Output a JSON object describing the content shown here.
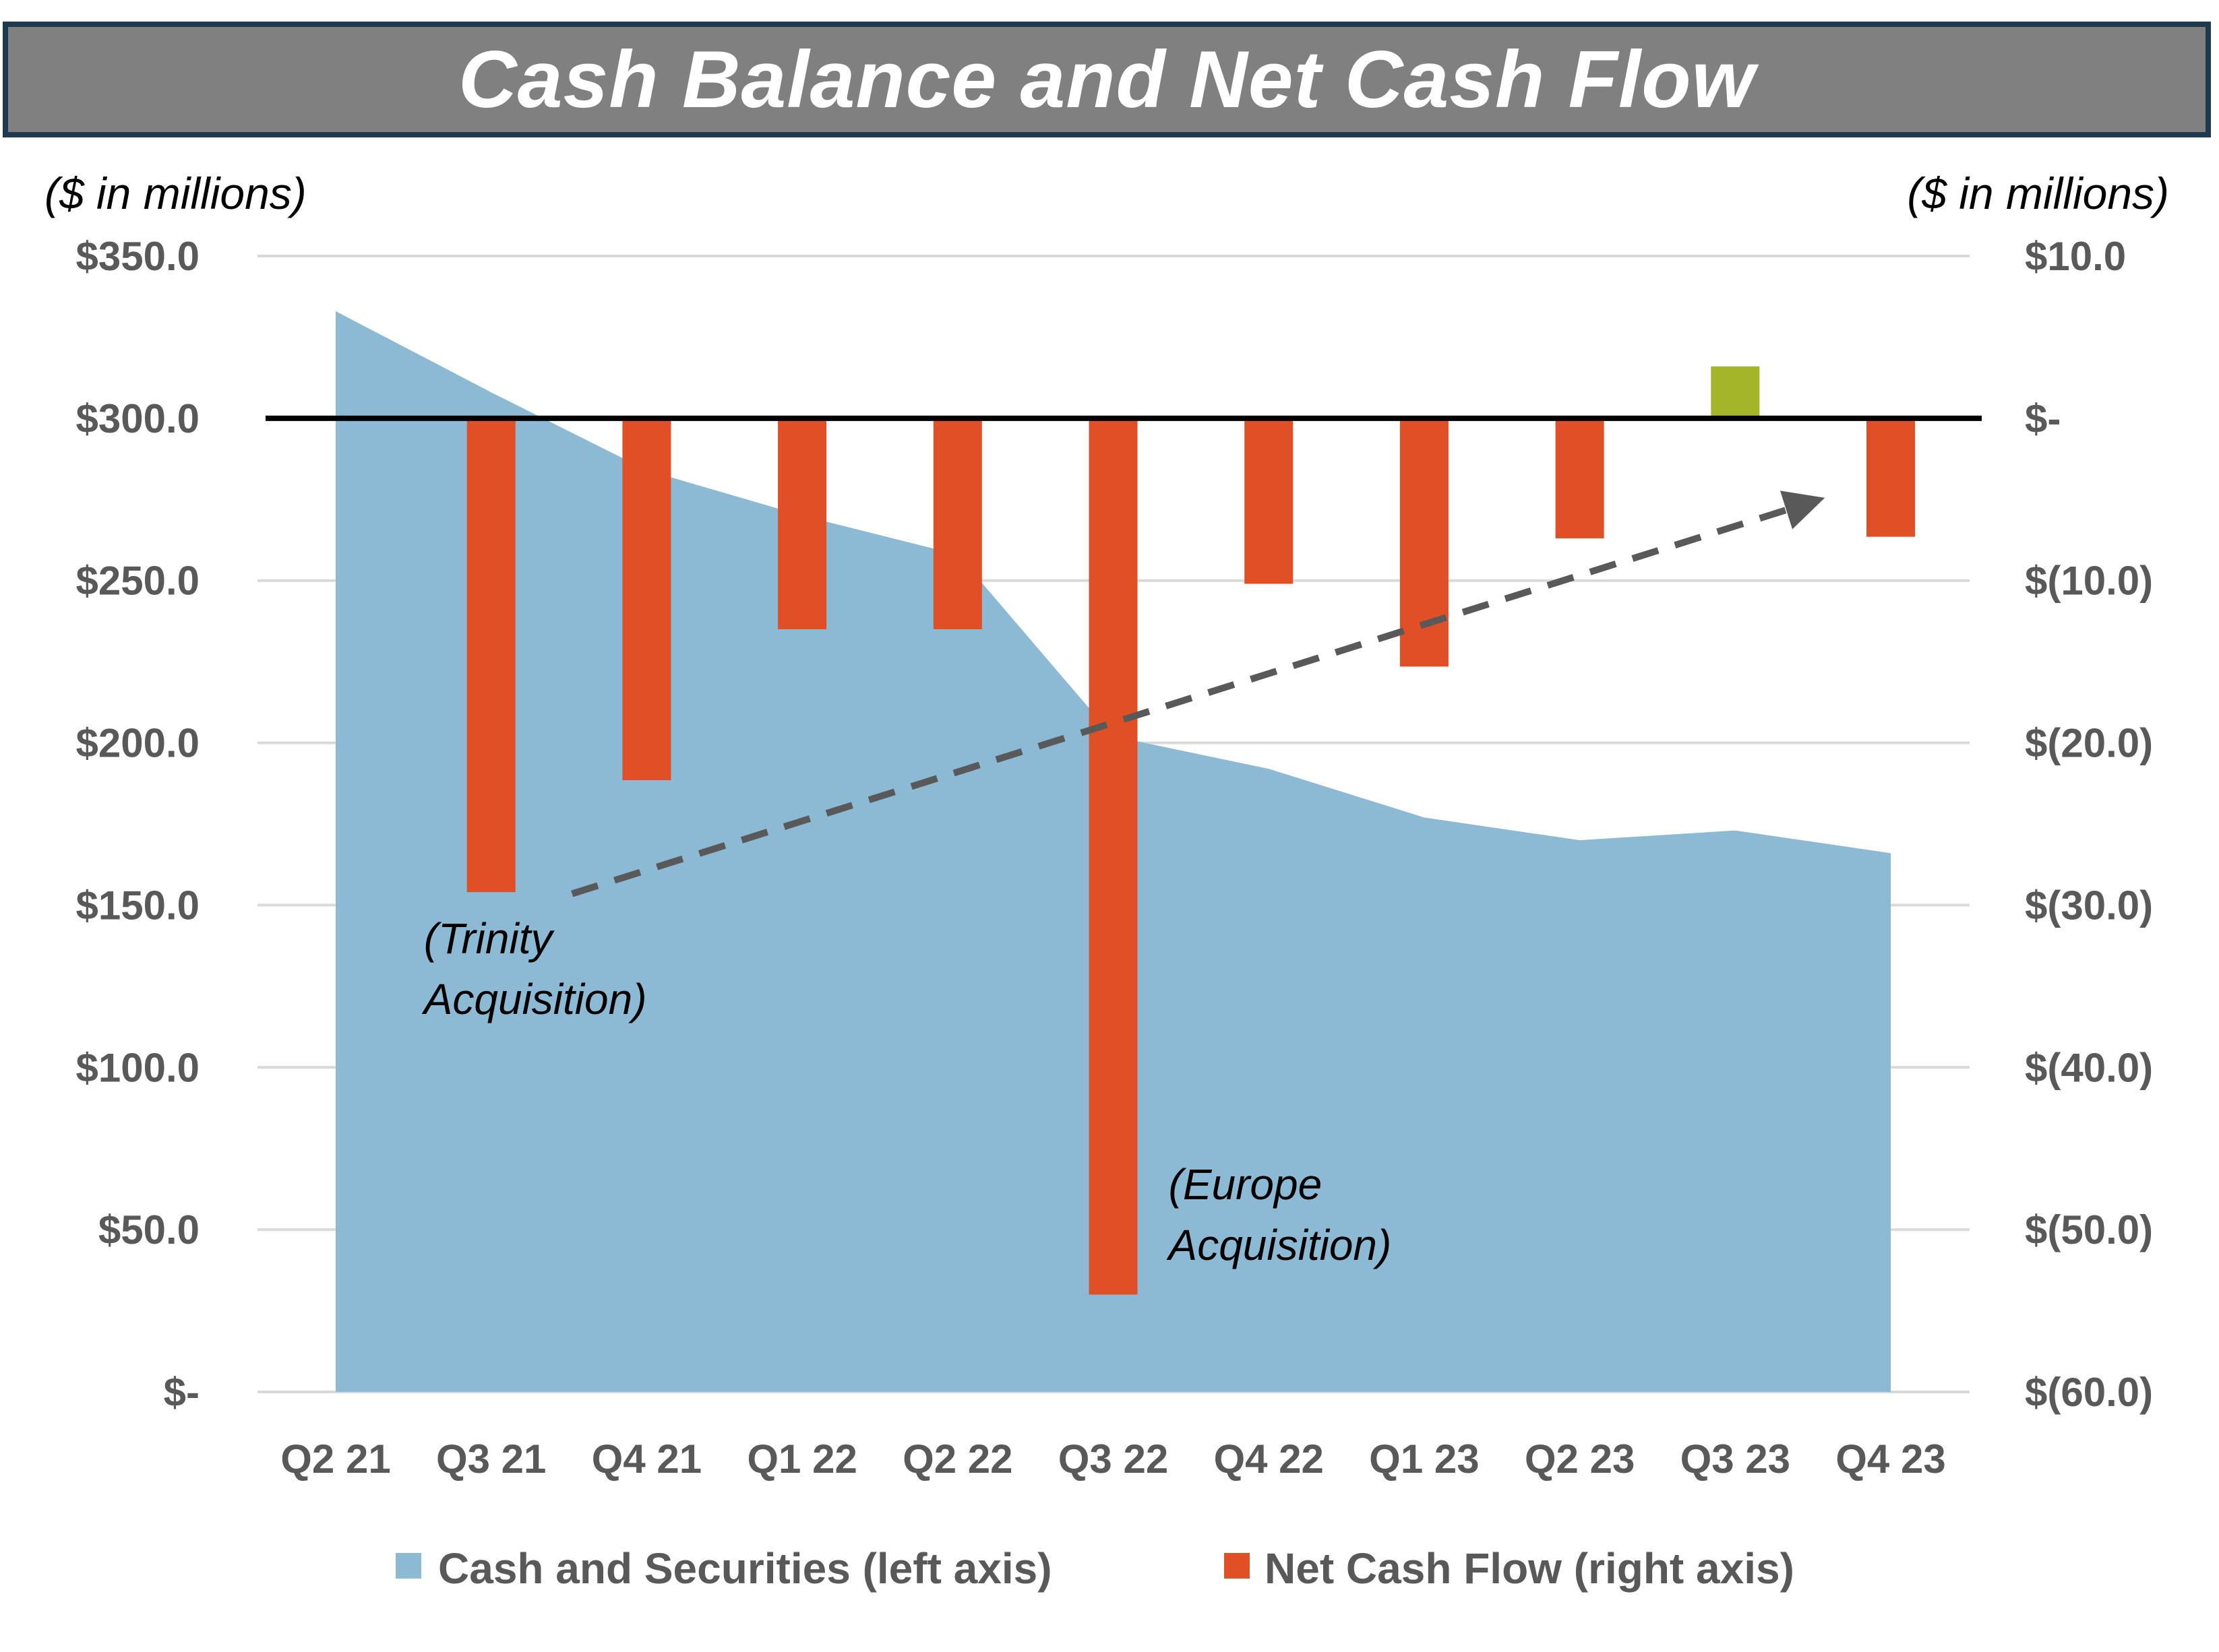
{
  "title": "Cash Balance and Net Cash Flow",
  "colors": {
    "area": "#8cb9d4",
    "negative_bar": "#e04f25",
    "positive_bar": "#a4b52a",
    "gridline": "#d9d9d9",
    "zero_line": "#000000",
    "tick_text": "#595959",
    "trend_arrow": "#595959",
    "title_bar": "#808080",
    "title_border": "#1f3a4d"
  },
  "chart_data": {
    "type": "area+bar",
    "title": "Cash Balance and Net Cash Flow",
    "categories": [
      "Q2 21",
      "Q3 21",
      "Q4 21",
      "Q1 22",
      "Q2 22",
      "Q3 22",
      "Q4 22",
      "Q1 23",
      "Q2 23",
      "Q3 23",
      "Q4 23"
    ],
    "left_axis": {
      "unit_label": "($ in millions)",
      "range": [
        0,
        350
      ],
      "ticks": [
        {
          "value": 0,
          "label": "$-"
        },
        {
          "value": 50,
          "label": "$50.0"
        },
        {
          "value": 100,
          "label": "$100.0"
        },
        {
          "value": 150,
          "label": "$150.0"
        },
        {
          "value": 200,
          "label": "$200.0"
        },
        {
          "value": 250,
          "label": "$250.0"
        },
        {
          "value": 300,
          "label": "$300.0"
        },
        {
          "value": 350,
          "label": "$350.0"
        }
      ]
    },
    "right_axis": {
      "unit_label": "($ in millions)",
      "range": [
        -60,
        10
      ],
      "ticks": [
        {
          "value": -60,
          "label": "$(60.0)"
        },
        {
          "value": -50,
          "label": "$(50.0)"
        },
        {
          "value": -40,
          "label": "$(40.0)"
        },
        {
          "value": -30,
          "label": "$(30.0)"
        },
        {
          "value": -20,
          "label": "$(20.0)"
        },
        {
          "value": -10,
          "label": "$(10.0)"
        },
        {
          "value": 0,
          "label": "$-"
        },
        {
          "value": 10,
          "label": "$10.0"
        }
      ]
    },
    "series": [
      {
        "name": "Cash and Securities (left axis)",
        "type": "area",
        "axis": "left",
        "values": [
          333,
          308,
          284,
          270,
          258,
          202,
          192,
          177,
          170,
          173,
          166
        ]
      },
      {
        "name": "Net Cash Flow (right axis)",
        "type": "bar",
        "axis": "right",
        "values": [
          null,
          -29.2,
          -22.3,
          -13,
          -13,
          -54,
          -10.2,
          -15.3,
          -7.4,
          3.2,
          -7.3
        ]
      }
    ],
    "annotations": [
      {
        "lines": [
          "(Trinity",
          "Acquisition)"
        ],
        "category": "Q3 21"
      },
      {
        "lines": [
          "(Europe",
          "Acquisition)"
        ],
        "category": "Q3 22"
      }
    ],
    "trend_arrow": {
      "from": {
        "category": "Q3 21",
        "value": -29.3
      },
      "to": {
        "category": "Q3 23",
        "value": -5.2
      }
    },
    "grid": true,
    "legend_position": "bottom"
  }
}
